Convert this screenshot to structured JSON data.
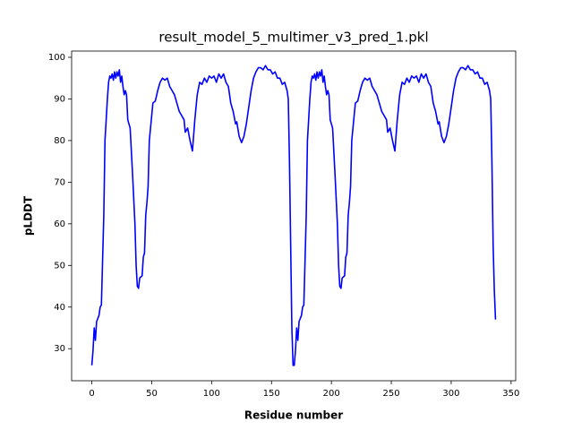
{
  "chart_data": {
    "type": "line",
    "title": "result_model_5_multimer_v3_pred_1.pkl",
    "x_label": "Residue number",
    "y_label": "pLDDT",
    "color": "#0000ff",
    "x": [
      0,
      1,
      2,
      3,
      4,
      6,
      7,
      8,
      10,
      11,
      12,
      13,
      14,
      15,
      16,
      17,
      18,
      19,
      20,
      21,
      22,
      23,
      24,
      25,
      26,
      27,
      28,
      29,
      30,
      32,
      34,
      36,
      37,
      38,
      39,
      40,
      42,
      43,
      44,
      45,
      46,
      47,
      48,
      50,
      51,
      53,
      55,
      57,
      59,
      61,
      63,
      65,
      67,
      69,
      71,
      73,
      75,
      77,
      78,
      80,
      82,
      84,
      86,
      88,
      90,
      92,
      94,
      96,
      98,
      100,
      102,
      104,
      106,
      108,
      110,
      112,
      114,
      116,
      118,
      120,
      121,
      123,
      125,
      127,
      129,
      131,
      133,
      135,
      137,
      139,
      141,
      143,
      145,
      147,
      149,
      151,
      153,
      155,
      157,
      159,
      161,
      163,
      164,
      165,
      166,
      167,
      168,
      169,
      170,
      171,
      172,
      173,
      175,
      176,
      177,
      179,
      180,
      181,
      182,
      183,
      184,
      185,
      186,
      187,
      188,
      189,
      190,
      191,
      192,
      193,
      194,
      195,
      196,
      197,
      198,
      199,
      201,
      203,
      205,
      206,
      207,
      208,
      209,
      211,
      212,
      213,
      214,
      215,
      216,
      217,
      219,
      220,
      222,
      224,
      226,
      228,
      230,
      232,
      234,
      236,
      238,
      240,
      242,
      244,
      246,
      247,
      249,
      251,
      253,
      255,
      257,
      259,
      261,
      263,
      265,
      267,
      269,
      271,
      273,
      275,
      277,
      279,
      281,
      283,
      285,
      287,
      289,
      290,
      292,
      294,
      296,
      298,
      300,
      302,
      304,
      306,
      308,
      310,
      312,
      314,
      316,
      318,
      320,
      322,
      324,
      326,
      328,
      330,
      332,
      333,
      334,
      335,
      336,
      337
    ],
    "values": [
      26,
      29.5,
      35,
      32,
      36.5,
      38,
      40,
      40.5,
      62,
      80,
      85,
      90,
      94,
      95.5,
      95,
      96,
      94.5,
      96.5,
      95,
      96.5,
      95.5,
      97,
      94,
      95.5,
      93,
      91,
      92,
      91,
      85,
      83,
      72,
      60,
      50,
      45,
      44.5,
      47,
      47.5,
      52,
      53,
      62,
      65,
      69,
      80,
      86,
      89,
      89.5,
      92,
      94,
      95,
      94.5,
      95,
      93,
      92,
      91,
      89,
      87,
      86,
      85,
      82,
      83,
      80,
      77.5,
      85,
      91,
      94,
      93.5,
      95,
      94,
      95.5,
      95,
      95.5,
      94,
      96,
      95,
      96,
      94,
      93,
      89,
      87,
      84,
      84.5,
      81,
      79.5,
      81,
      84,
      88,
      92,
      95,
      96.5,
      97.5,
      97.5,
      97,
      98,
      97,
      97,
      96,
      96.5,
      95,
      95,
      93.5,
      94,
      92,
      90,
      75,
      55,
      35,
      26,
      26,
      29.5,
      35,
      32,
      36.5,
      38,
      40,
      40.5,
      62,
      80,
      85,
      90,
      94,
      95.5,
      95,
      96,
      94.5,
      96.5,
      95,
      96.5,
      95.5,
      97,
      94,
      95.5,
      93,
      91,
      92,
      91,
      85,
      83,
      72,
      60,
      50,
      45,
      44.5,
      47,
      47.5,
      52,
      53,
      62,
      65,
      69,
      80,
      86,
      89,
      89.5,
      92,
      94,
      95,
      94.5,
      95,
      93,
      92,
      91,
      89,
      87,
      86,
      85,
      82,
      83,
      80,
      77.5,
      85,
      91,
      94,
      93.5,
      95,
      94,
      95.5,
      95,
      95.5,
      94,
      96,
      95,
      96,
      94,
      93,
      89,
      87,
      84,
      84.5,
      81,
      79.5,
      81,
      84,
      88,
      92,
      95,
      96.5,
      97.5,
      97.5,
      97,
      98,
      97,
      97,
      96,
      96.5,
      95,
      95,
      93.5,
      94,
      92,
      90,
      75,
      55,
      44,
      37
    ],
    "xlim": [
      -16.85,
      353.85
    ],
    "xticks": [
      0,
      50,
      100,
      150,
      200,
      250,
      300,
      350
    ],
    "ylim": [
      22.3,
      101.5
    ],
    "yticks": [
      30,
      40,
      50,
      60,
      70,
      80,
      90,
      100
    ]
  }
}
